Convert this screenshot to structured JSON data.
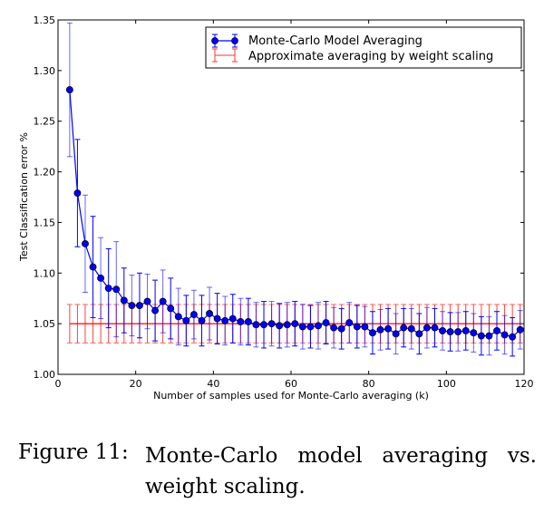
{
  "chart_data": {
    "type": "line",
    "title": "",
    "xlabel": "Number of samples used for Monte-Carlo averaging (k)",
    "ylabel": "Test Classification error %",
    "xlim": [
      0,
      120
    ],
    "ylim": [
      1.0,
      1.35
    ],
    "xticks": [
      "0",
      "20",
      "40",
      "60",
      "80",
      "100",
      "120"
    ],
    "yticks": [
      "1.00",
      "1.05",
      "1.10",
      "1.15",
      "1.20",
      "1.25",
      "1.30",
      "1.35"
    ],
    "grid": false,
    "legend_placement": "top-right",
    "x": [
      3,
      5,
      7,
      9,
      11,
      13,
      15,
      17,
      19,
      21,
      23,
      25,
      27,
      29,
      31,
      33,
      35,
      37,
      39,
      41,
      43,
      45,
      47,
      49,
      51,
      53,
      55,
      57,
      59,
      61,
      63,
      65,
      67,
      69,
      71,
      73,
      75,
      77,
      79,
      81,
      83,
      85,
      87,
      89,
      91,
      93,
      95,
      97,
      99,
      101,
      103,
      105,
      107,
      109,
      111,
      113,
      115,
      117,
      119
    ],
    "series": [
      {
        "name": "Monte-Carlo Model Averaging",
        "color": "#0000ff",
        "values": [
          1.281,
          1.179,
          1.129,
          1.106,
          1.095,
          1.085,
          1.084,
          1.073,
          1.068,
          1.068,
          1.072,
          1.063,
          1.072,
          1.065,
          1.057,
          1.053,
          1.059,
          1.053,
          1.06,
          1.055,
          1.053,
          1.055,
          1.052,
          1.052,
          1.049,
          1.049,
          1.05,
          1.048,
          1.049,
          1.05,
          1.047,
          1.047,
          1.048,
          1.051,
          1.046,
          1.045,
          1.051,
          1.047,
          1.047,
          1.041,
          1.044,
          1.045,
          1.04,
          1.046,
          1.045,
          1.04,
          1.046,
          1.046,
          1.043,
          1.042,
          1.042,
          1.043,
          1.041,
          1.038,
          1.038,
          1.043,
          1.039,
          1.037,
          1.044
        ],
        "error": [
          0.066,
          0.053,
          0.048,
          0.05,
          0.04,
          0.039,
          0.047,
          0.032,
          0.03,
          0.032,
          0.027,
          0.03,
          0.031,
          0.03,
          0.028,
          0.025,
          0.024,
          0.025,
          0.026,
          0.025,
          0.024,
          0.024,
          0.023,
          0.023,
          0.022,
          0.023,
          0.022,
          0.022,
          0.022,
          0.022,
          0.022,
          0.021,
          0.023,
          0.021,
          0.02,
          0.02,
          0.02,
          0.021,
          0.02,
          0.021,
          0.02,
          0.02,
          0.02,
          0.019,
          0.02,
          0.02,
          0.02,
          0.019,
          0.019,
          0.019,
          0.019,
          0.019,
          0.019,
          0.019,
          0.019,
          0.019,
          0.019,
          0.019,
          0.019
        ]
      },
      {
        "name": "Approximate averaging by weight scaling",
        "color": "#ff0000",
        "value": 1.05,
        "error": 0.019
      }
    ]
  },
  "caption": {
    "label": "Figure 11:",
    "text": "Monte-Carlo model averaging vs. weight scaling."
  }
}
